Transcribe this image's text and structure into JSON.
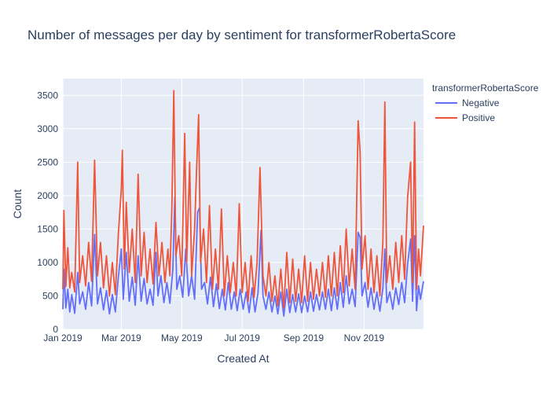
{
  "chart_data": {
    "type": "line",
    "title": "Number of messages per day by sentiment for transformerRobertaScore",
    "xlabel": "Created At",
    "ylabel": "Count",
    "x_range": [
      "2019-01-01",
      "2019-12-31"
    ],
    "ylim": [
      0,
      3750
    ],
    "x_ticks": [
      {
        "date": "2019-01-01",
        "label": "Jan 2019"
      },
      {
        "date": "2019-03-01",
        "label": "Mar 2019"
      },
      {
        "date": "2019-05-01",
        "label": "May 2019"
      },
      {
        "date": "2019-07-01",
        "label": "Jul 2019"
      },
      {
        "date": "2019-09-01",
        "label": "Sep 2019"
      },
      {
        "date": "2019-11-01",
        "label": "Nov 2019"
      }
    ],
    "y_ticks": [
      0,
      500,
      1000,
      1500,
      2000,
      2500,
      3000,
      3500
    ],
    "grid": true,
    "legend": {
      "title": "transformerRobertaScore",
      "placement": "top-right outside"
    },
    "series": [
      {
        "name": "Negative",
        "color": "#636efa",
        "points": [
          [
            "2019-01-01",
            300
          ],
          [
            "2019-01-02",
            900
          ],
          [
            "2019-01-04",
            320
          ],
          [
            "2019-01-06",
            600
          ],
          [
            "2019-01-08",
            260
          ],
          [
            "2019-01-10",
            520
          ],
          [
            "2019-01-13",
            240
          ],
          [
            "2019-01-16",
            850
          ],
          [
            "2019-01-18",
            380
          ],
          [
            "2019-01-21",
            560
          ],
          [
            "2019-01-24",
            300
          ],
          [
            "2019-01-27",
            700
          ],
          [
            "2019-01-30",
            350
          ],
          [
            "2019-02-02",
            1420
          ],
          [
            "2019-02-05",
            380
          ],
          [
            "2019-02-08",
            620
          ],
          [
            "2019-02-11",
            290
          ],
          [
            "2019-02-14",
            580
          ],
          [
            "2019-02-17",
            230
          ],
          [
            "2019-02-20",
            520
          ],
          [
            "2019-02-23",
            260
          ],
          [
            "2019-02-26",
            780
          ],
          [
            "2019-03-01",
            1200
          ],
          [
            "2019-03-03",
            450
          ],
          [
            "2019-03-06",
            1150
          ],
          [
            "2019-03-09",
            420
          ],
          [
            "2019-03-12",
            780
          ],
          [
            "2019-03-15",
            360
          ],
          [
            "2019-03-18",
            1100
          ],
          [
            "2019-03-21",
            420
          ],
          [
            "2019-03-24",
            760
          ],
          [
            "2019-03-27",
            380
          ],
          [
            "2019-03-30",
            600
          ],
          [
            "2019-04-02",
            360
          ],
          [
            "2019-04-05",
            1150
          ],
          [
            "2019-04-07",
            500
          ],
          [
            "2019-04-10",
            800
          ],
          [
            "2019-04-13",
            400
          ],
          [
            "2019-04-16",
            700
          ],
          [
            "2019-04-19",
            390
          ],
          [
            "2019-04-22",
            900
          ],
          [
            "2019-04-24",
            1980
          ],
          [
            "2019-04-26",
            600
          ],
          [
            "2019-04-29",
            800
          ],
          [
            "2019-05-02",
            480
          ],
          [
            "2019-05-05",
            1200
          ],
          [
            "2019-05-08",
            500
          ],
          [
            "2019-05-11",
            800
          ],
          [
            "2019-05-14",
            450
          ],
          [
            "2019-05-17",
            1750
          ],
          [
            "2019-05-19",
            1820
          ],
          [
            "2019-05-21",
            600
          ],
          [
            "2019-05-24",
            700
          ],
          [
            "2019-05-27",
            380
          ],
          [
            "2019-05-30",
            780
          ],
          [
            "2019-06-02",
            340
          ],
          [
            "2019-06-05",
            680
          ],
          [
            "2019-06-08",
            310
          ],
          [
            "2019-06-11",
            600
          ],
          [
            "2019-06-14",
            290
          ],
          [
            "2019-06-17",
            700
          ],
          [
            "2019-06-20",
            300
          ],
          [
            "2019-06-23",
            560
          ],
          [
            "2019-06-26",
            280
          ],
          [
            "2019-06-29",
            600
          ],
          [
            "2019-07-02",
            300
          ],
          [
            "2019-07-05",
            560
          ],
          [
            "2019-07-08",
            250
          ],
          [
            "2019-07-11",
            620
          ],
          [
            "2019-07-14",
            260
          ],
          [
            "2019-07-17",
            550
          ],
          [
            "2019-07-20",
            1480
          ],
          [
            "2019-07-22",
            500
          ],
          [
            "2019-07-25",
            300
          ],
          [
            "2019-07-28",
            560
          ],
          [
            "2019-07-31",
            260
          ],
          [
            "2019-08-03",
            500
          ],
          [
            "2019-08-06",
            230
          ],
          [
            "2019-08-09",
            560
          ],
          [
            "2019-08-12",
            200
          ],
          [
            "2019-08-15",
            600
          ],
          [
            "2019-08-18",
            250
          ],
          [
            "2019-08-21",
            520
          ],
          [
            "2019-08-24",
            260
          ],
          [
            "2019-08-27",
            530
          ],
          [
            "2019-08-30",
            250
          ],
          [
            "2019-09-02",
            500
          ],
          [
            "2019-09-05",
            260
          ],
          [
            "2019-09-08",
            560
          ],
          [
            "2019-09-11",
            270
          ],
          [
            "2019-09-14",
            520
          ],
          [
            "2019-09-17",
            290
          ],
          [
            "2019-09-20",
            560
          ],
          [
            "2019-09-23",
            300
          ],
          [
            "2019-09-26",
            600
          ],
          [
            "2019-09-29",
            280
          ],
          [
            "2019-10-02",
            620
          ],
          [
            "2019-10-05",
            300
          ],
          [
            "2019-10-08",
            700
          ],
          [
            "2019-10-11",
            330
          ],
          [
            "2019-10-14",
            800
          ],
          [
            "2019-10-17",
            380
          ],
          [
            "2019-10-20",
            600
          ],
          [
            "2019-10-23",
            340
          ],
          [
            "2019-10-26",
            1450
          ],
          [
            "2019-10-28",
            1380
          ],
          [
            "2019-10-30",
            500
          ],
          [
            "2019-11-02",
            700
          ],
          [
            "2019-11-05",
            330
          ],
          [
            "2019-11-08",
            620
          ],
          [
            "2019-11-11",
            300
          ],
          [
            "2019-11-14",
            560
          ],
          [
            "2019-11-17",
            270
          ],
          [
            "2019-11-20",
            620
          ],
          [
            "2019-11-22",
            1200
          ],
          [
            "2019-11-24",
            400
          ],
          [
            "2019-11-27",
            560
          ],
          [
            "2019-11-30",
            300
          ],
          [
            "2019-12-03",
            620
          ],
          [
            "2019-12-06",
            370
          ],
          [
            "2019-12-09",
            700
          ],
          [
            "2019-12-12",
            400
          ],
          [
            "2019-12-15",
            980
          ],
          [
            "2019-12-18",
            1350
          ],
          [
            "2019-12-20",
            420
          ],
          [
            "2019-12-22",
            1400
          ],
          [
            "2019-12-24",
            280
          ],
          [
            "2019-12-26",
            650
          ],
          [
            "2019-12-28",
            450
          ],
          [
            "2019-12-31",
            720
          ]
        ]
      },
      {
        "name": "Positive",
        "color": "#ef553b",
        "points": [
          [
            "2019-01-01",
            600
          ],
          [
            "2019-01-02",
            1780
          ],
          [
            "2019-01-04",
            640
          ],
          [
            "2019-01-06",
            1220
          ],
          [
            "2019-01-08",
            620
          ],
          [
            "2019-01-10",
            850
          ],
          [
            "2019-01-13",
            560
          ],
          [
            "2019-01-16",
            2500
          ],
          [
            "2019-01-18",
            700
          ],
          [
            "2019-01-21",
            1100
          ],
          [
            "2019-01-24",
            650
          ],
          [
            "2019-01-27",
            1300
          ],
          [
            "2019-01-30",
            720
          ],
          [
            "2019-02-02",
            2530
          ],
          [
            "2019-02-05",
            800
          ],
          [
            "2019-02-08",
            1300
          ],
          [
            "2019-02-11",
            620
          ],
          [
            "2019-02-14",
            1100
          ],
          [
            "2019-02-17",
            500
          ],
          [
            "2019-02-20",
            1000
          ],
          [
            "2019-02-23",
            520
          ],
          [
            "2019-02-26",
            1420
          ],
          [
            "2019-03-01",
            2100
          ],
          [
            "2019-03-02",
            2680
          ],
          [
            "2019-03-04",
            900
          ],
          [
            "2019-03-06",
            1900
          ],
          [
            "2019-03-09",
            850
          ],
          [
            "2019-03-12",
            1500
          ],
          [
            "2019-03-15",
            700
          ],
          [
            "2019-03-18",
            2320
          ],
          [
            "2019-03-21",
            800
          ],
          [
            "2019-03-24",
            1450
          ],
          [
            "2019-03-27",
            700
          ],
          [
            "2019-03-30",
            1200
          ],
          [
            "2019-04-02",
            680
          ],
          [
            "2019-04-05",
            1600
          ],
          [
            "2019-04-08",
            800
          ],
          [
            "2019-04-11",
            1300
          ],
          [
            "2019-04-14",
            700
          ],
          [
            "2019-04-17",
            1200
          ],
          [
            "2019-04-19",
            800
          ],
          [
            "2019-04-21",
            1800
          ],
          [
            "2019-04-23",
            3570
          ],
          [
            "2019-04-25",
            1100
          ],
          [
            "2019-04-28",
            1400
          ],
          [
            "2019-05-01",
            800
          ],
          [
            "2019-05-04",
            2930
          ],
          [
            "2019-05-06",
            1000
          ],
          [
            "2019-05-09",
            2500
          ],
          [
            "2019-05-11",
            800
          ],
          [
            "2019-05-14",
            1500
          ],
          [
            "2019-05-16",
            2400
          ],
          [
            "2019-05-18",
            3210
          ],
          [
            "2019-05-20",
            1000
          ],
          [
            "2019-05-23",
            1500
          ],
          [
            "2019-05-26",
            700
          ],
          [
            "2019-05-29",
            1850
          ],
          [
            "2019-06-01",
            600
          ],
          [
            "2019-06-04",
            1200
          ],
          [
            "2019-06-07",
            600
          ],
          [
            "2019-06-10",
            1800
          ],
          [
            "2019-06-13",
            500
          ],
          [
            "2019-06-16",
            1100
          ],
          [
            "2019-06-19",
            550
          ],
          [
            "2019-06-22",
            1000
          ],
          [
            "2019-06-25",
            500
          ],
          [
            "2019-06-28",
            1880
          ],
          [
            "2019-07-01",
            550
          ],
          [
            "2019-07-04",
            1000
          ],
          [
            "2019-07-07",
            420
          ],
          [
            "2019-07-10",
            1100
          ],
          [
            "2019-07-13",
            480
          ],
          [
            "2019-07-16",
            1000
          ],
          [
            "2019-07-19",
            2420
          ],
          [
            "2019-07-22",
            800
          ],
          [
            "2019-07-25",
            500
          ],
          [
            "2019-07-28",
            1000
          ],
          [
            "2019-07-31",
            420
          ],
          [
            "2019-08-03",
            800
          ],
          [
            "2019-08-06",
            350
          ],
          [
            "2019-08-09",
            900
          ],
          [
            "2019-08-12",
            320
          ],
          [
            "2019-08-15",
            1150
          ],
          [
            "2019-08-18",
            400
          ],
          [
            "2019-08-21",
            1050
          ],
          [
            "2019-08-24",
            420
          ],
          [
            "2019-08-27",
            900
          ],
          [
            "2019-08-30",
            400
          ],
          [
            "2019-09-02",
            1100
          ],
          [
            "2019-09-05",
            420
          ],
          [
            "2019-09-08",
            1000
          ],
          [
            "2019-09-11",
            450
          ],
          [
            "2019-09-14",
            900
          ],
          [
            "2019-09-17",
            500
          ],
          [
            "2019-09-20",
            1000
          ],
          [
            "2019-09-23",
            480
          ],
          [
            "2019-09-26",
            1100
          ],
          [
            "2019-09-29",
            500
          ],
          [
            "2019-10-02",
            1150
          ],
          [
            "2019-10-05",
            500
          ],
          [
            "2019-10-08",
            1250
          ],
          [
            "2019-10-11",
            550
          ],
          [
            "2019-10-14",
            1500
          ],
          [
            "2019-10-17",
            650
          ],
          [
            "2019-10-20",
            1200
          ],
          [
            "2019-10-23",
            600
          ],
          [
            "2019-10-26",
            3120
          ],
          [
            "2019-10-28",
            2650
          ],
          [
            "2019-10-30",
            900
          ],
          [
            "2019-11-02",
            1400
          ],
          [
            "2019-11-05",
            600
          ],
          [
            "2019-11-08",
            1200
          ],
          [
            "2019-11-11",
            550
          ],
          [
            "2019-11-14",
            1100
          ],
          [
            "2019-11-17",
            500
          ],
          [
            "2019-11-20",
            1300
          ],
          [
            "2019-11-22",
            3400
          ],
          [
            "2019-11-24",
            700
          ],
          [
            "2019-11-27",
            1100
          ],
          [
            "2019-11-30",
            600
          ],
          [
            "2019-12-03",
            1300
          ],
          [
            "2019-12-06",
            700
          ],
          [
            "2019-12-09",
            1400
          ],
          [
            "2019-12-12",
            750
          ],
          [
            "2019-12-15",
            1980
          ],
          [
            "2019-12-18",
            2500
          ],
          [
            "2019-12-20",
            700
          ],
          [
            "2019-12-22",
            3100
          ],
          [
            "2019-12-24",
            600
          ],
          [
            "2019-12-26",
            1200
          ],
          [
            "2019-12-28",
            800
          ],
          [
            "2019-12-31",
            1550
          ]
        ]
      }
    ]
  }
}
